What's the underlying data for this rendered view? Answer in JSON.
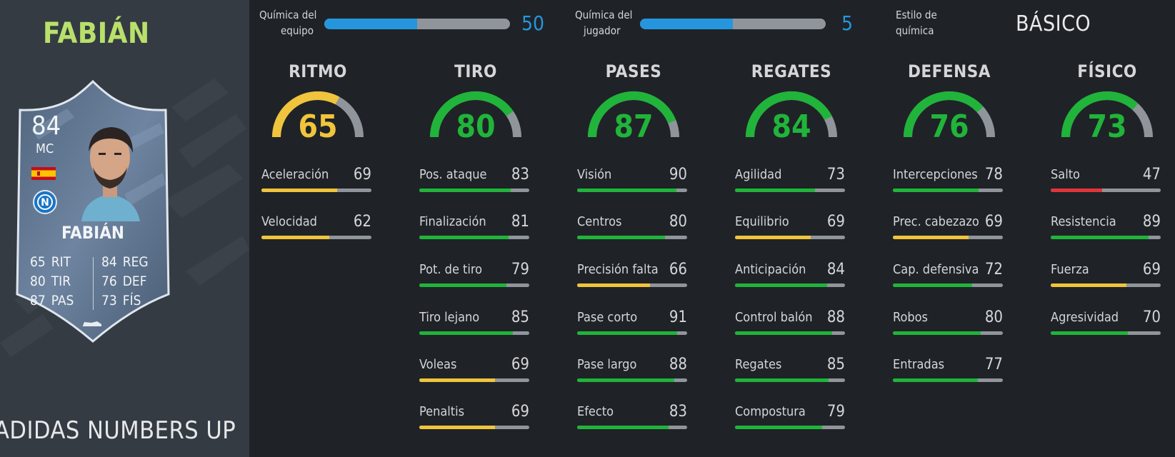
{
  "player": {
    "name": "FABIÁN",
    "promo": "ADIDAS NUMBERS UP",
    "card": {
      "rating": "84",
      "position": "MC",
      "name": "FABIÁN",
      "stats": [
        {
          "value": "65",
          "label": "RIT"
        },
        {
          "value": "84",
          "label": "REG"
        },
        {
          "value": "80",
          "label": "TIR"
        },
        {
          "value": "76",
          "label": "DEF"
        },
        {
          "value": "87",
          "label": "PAS"
        },
        {
          "value": "73",
          "label": "FÍS"
        }
      ]
    }
  },
  "chemistry": {
    "team": {
      "label_line1": "Química del",
      "label_line2": "equipo",
      "value": "50",
      "fill": 0.5
    },
    "player": {
      "label_line1": "Química del",
      "label_line2": "jugador",
      "value": "5",
      "fill": 0.5
    },
    "style": {
      "label_line1": "Estilo de",
      "label_line2": "química",
      "value": "BÁSICO"
    }
  },
  "colors": {
    "green": "#20b43a",
    "yellow": "#f0c43c",
    "red": "#e2343a",
    "blue": "#2596dd",
    "track": "#8f959b"
  },
  "categories": [
    {
      "title": "RITMO",
      "value": 65,
      "color": "yellow",
      "stats": [
        {
          "label": "Aceleración",
          "value": 69
        },
        {
          "label": "Velocidad",
          "value": 62
        }
      ]
    },
    {
      "title": "TIRO",
      "value": 80,
      "color": "green",
      "stats": [
        {
          "label": "Pos. ataque",
          "value": 83
        },
        {
          "label": "Finalización",
          "value": 81
        },
        {
          "label": "Pot. de tiro",
          "value": 79
        },
        {
          "label": "Tiro lejano",
          "value": 85
        },
        {
          "label": "Voleas",
          "value": 69
        },
        {
          "label": "Penaltis",
          "value": 69
        }
      ]
    },
    {
      "title": "PASES",
      "value": 87,
      "color": "green",
      "stats": [
        {
          "label": "Visión",
          "value": 90
        },
        {
          "label": "Centros",
          "value": 80
        },
        {
          "label": "Precisión falta",
          "value": 66
        },
        {
          "label": "Pase corto",
          "value": 91
        },
        {
          "label": "Pase largo",
          "value": 88
        },
        {
          "label": "Efecto",
          "value": 83
        }
      ]
    },
    {
      "title": "REGATES",
      "value": 84,
      "color": "green",
      "stats": [
        {
          "label": "Agilidad",
          "value": 73
        },
        {
          "label": "Equilibrio",
          "value": 69
        },
        {
          "label": "Anticipación",
          "value": 84
        },
        {
          "label": "Control balón",
          "value": 88
        },
        {
          "label": "Regates",
          "value": 85
        },
        {
          "label": "Compostura",
          "value": 79
        }
      ]
    },
    {
      "title": "DEFENSA",
      "value": 76,
      "color": "green",
      "stats": [
        {
          "label": "Intercepciones",
          "value": 78
        },
        {
          "label": "Prec. cabezazo",
          "value": 69
        },
        {
          "label": "Cap. defensiva",
          "value": 72
        },
        {
          "label": "Robos",
          "value": 80
        },
        {
          "label": "Entradas",
          "value": 77
        }
      ]
    },
    {
      "title": "FÍSICO",
      "value": 73,
      "color": "green",
      "stats": [
        {
          "label": "Salto",
          "value": 47
        },
        {
          "label": "Resistencia",
          "value": 89
        },
        {
          "label": "Fuerza",
          "value": 69
        },
        {
          "label": "Agresividad",
          "value": 70
        }
      ]
    }
  ]
}
